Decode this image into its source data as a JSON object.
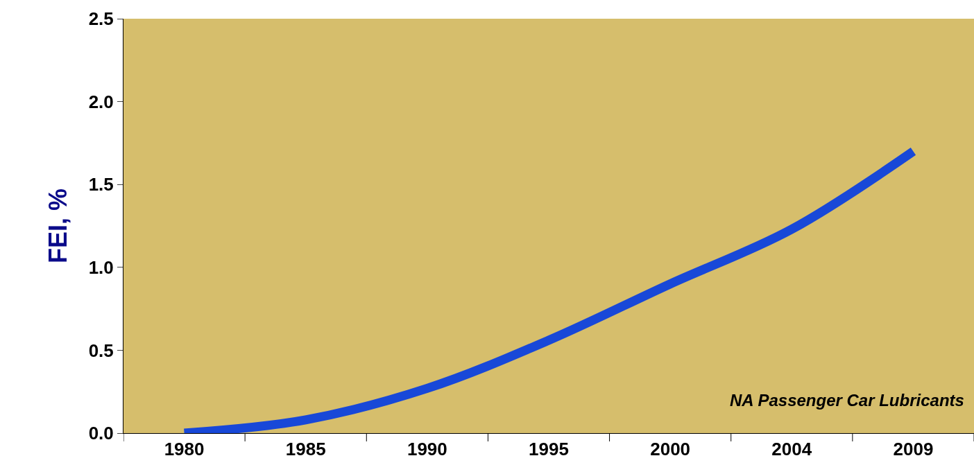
{
  "chart_data": {
    "type": "line",
    "ylabel": "FEI, %",
    "categories": [
      "1980",
      "1985",
      "1990",
      "1995",
      "2000",
      "2004",
      "2009"
    ],
    "series": [
      {
        "color": "#1848d8",
        "values": [
          0.0,
          0.08,
          0.27,
          0.56,
          0.9,
          1.23,
          1.7
        ]
      }
    ],
    "ylim": [
      0,
      2.5
    ],
    "yticks": [
      {
        "value": 0,
        "label": "0.0"
      },
      {
        "value": 0.5,
        "label": "0.5"
      },
      {
        "value": 1,
        "label": "1.0"
      },
      {
        "value": 1.5,
        "label": "1.5"
      },
      {
        "value": 2,
        "label": "2.0"
      },
      {
        "value": 2.5,
        "label": "2.5"
      }
    ],
    "grid": false,
    "annotations": [
      "NA Passenger Car Lubricants"
    ]
  }
}
